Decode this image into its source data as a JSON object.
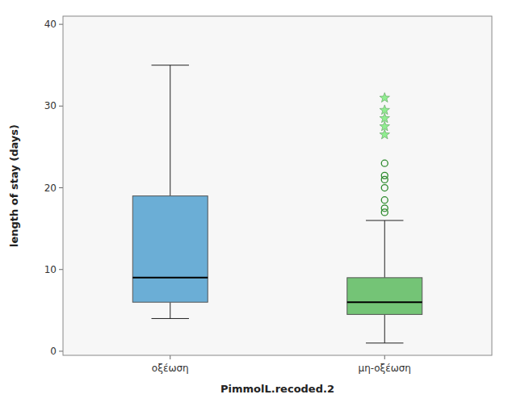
{
  "chart_data": {
    "type": "box",
    "xlabel": "PimmolL.recoded.2",
    "ylabel": "length of stay (days)",
    "categories": [
      "οξέωση",
      "μη-οξέωση"
    ],
    "boxes": [
      {
        "whisker_low": 4,
        "q1": 6,
        "median": 9,
        "q3": 19,
        "whisker_high": 35,
        "color": "#6baed6"
      },
      {
        "whisker_low": 1,
        "q1": 4.5,
        "median": 6,
        "q3": 9,
        "whisker_high": 16,
        "color": "#74c476",
        "outliers": [
          {
            "marker": "circle",
            "color": "#2d8a2d",
            "values": [
              17,
              17.5,
              18.5,
              20,
              21,
              21.5,
              23
            ]
          },
          {
            "marker": "star",
            "color": "#90ee90",
            "values": [
              26.5,
              27.5,
              28.5,
              29.5,
              31
            ]
          }
        ]
      }
    ],
    "ylim": [
      -0.5,
      41
    ],
    "yticks": [
      0,
      10,
      20,
      30,
      40
    ],
    "grid": false
  }
}
